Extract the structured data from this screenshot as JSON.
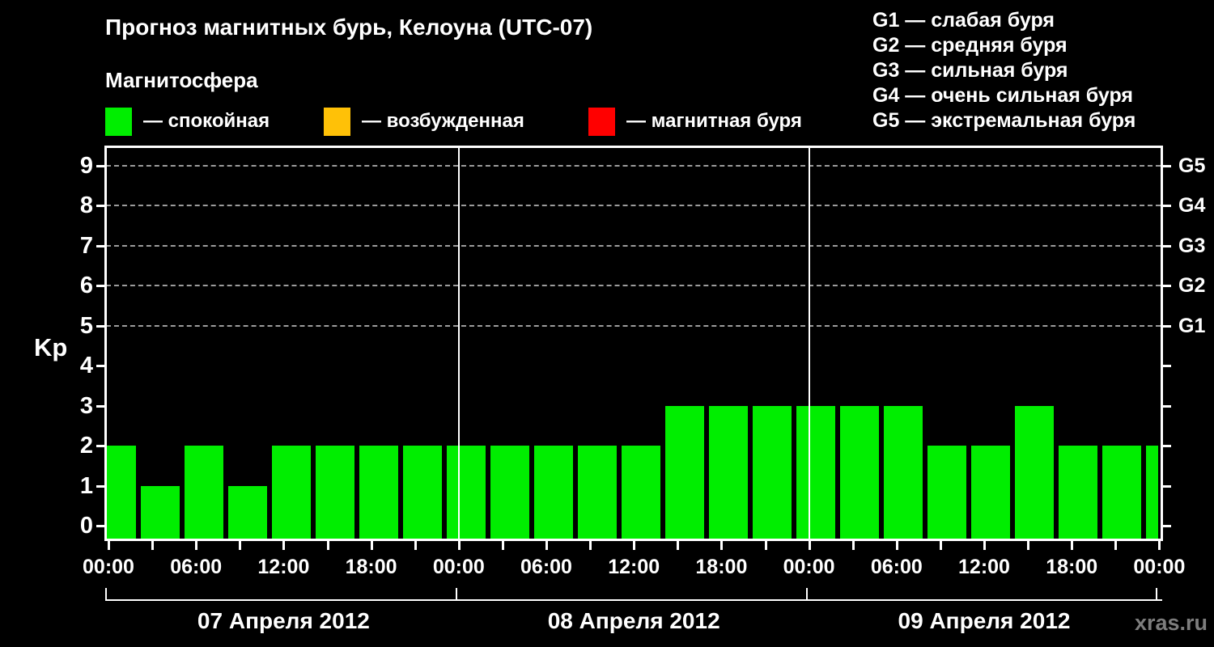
{
  "header": {
    "title": "Прогноз магнитных бурь, Келоуна (UTC-07)",
    "subtitle": "Магнитосфера",
    "legend": [
      {
        "name": "quiet",
        "label": "— спокойная",
        "color": "#00ee00"
      },
      {
        "name": "excited",
        "label": "— возбужденная",
        "color": "#ffc107"
      },
      {
        "name": "storm",
        "label": "— магнитная буря",
        "color": "#ff0000"
      }
    ],
    "storm_scale": [
      "G1 — слабая буря",
      "G2 — средняя буря",
      "G3 — сильная буря",
      "G4 — очень сильная буря",
      "G5 — экстремальная буря"
    ]
  },
  "watermark": "xras.ru",
  "chart_data": {
    "type": "bar",
    "title": "Прогноз магнитных бурь, Келоуна (UTC-07)",
    "xlabel": "",
    "ylabel": "Kp",
    "ylim": [
      0,
      9.45
    ],
    "yticks": [
      0,
      1,
      2,
      3,
      4,
      5,
      6,
      7,
      8,
      9
    ],
    "grid": "dashed horizontal at Kp 5-9 only",
    "grid_levels": [
      5,
      6,
      7,
      8,
      9
    ],
    "right_axis": [
      {
        "label": "G1",
        "kp": 5
      },
      {
        "label": "G2",
        "kp": 6
      },
      {
        "label": "G3",
        "kp": 7
      },
      {
        "label": "G4",
        "kp": 8
      },
      {
        "label": "G5",
        "kp": 9
      }
    ],
    "bar_color": "#00ee00",
    "interval_hours": 3,
    "x_start": "07 Апреля 2012 00:00",
    "x_step_hours": 3,
    "x_major_tick_labels": [
      "00:00",
      "06:00",
      "12:00",
      "18:00",
      "00:00",
      "06:00",
      "12:00",
      "18:00",
      "00:00",
      "06:00",
      "12:00",
      "18:00",
      "00:00"
    ],
    "day_labels": [
      "07 Апреля 2012",
      "08 Апреля 2012",
      "09 Апреля 2012"
    ],
    "series": [
      {
        "name": "Kp",
        "values": [
          2,
          1,
          2,
          1,
          2,
          2,
          2,
          2,
          2,
          2,
          2,
          2,
          2,
          3,
          3,
          3,
          3,
          3,
          3,
          2,
          2,
          3,
          2,
          2,
          2
        ],
        "per_day": {
          "07 Апреля 2012": {
            "00:00": 2,
            "03:00": 1,
            "06:00": 2,
            "09:00": 1,
            "12:00": 2,
            "15:00": 2,
            "18:00": 2,
            "21:00": 2
          },
          "08 Апреля 2012": {
            "00:00": 2,
            "03:00": 2,
            "06:00": 2,
            "09:00": 2,
            "12:00": 2,
            "15:00": 3,
            "18:00": 3,
            "21:00": 3
          },
          "09 Апреля 2012": {
            "00:00": 3,
            "03:00": 3,
            "06:00": 3,
            "09:00": 2,
            "12:00": 2,
            "15:00": 3,
            "18:00": 2,
            "21:00": 2
          },
          "10 Апреля 2012": {
            "00:00": 2
          }
        }
      }
    ]
  }
}
